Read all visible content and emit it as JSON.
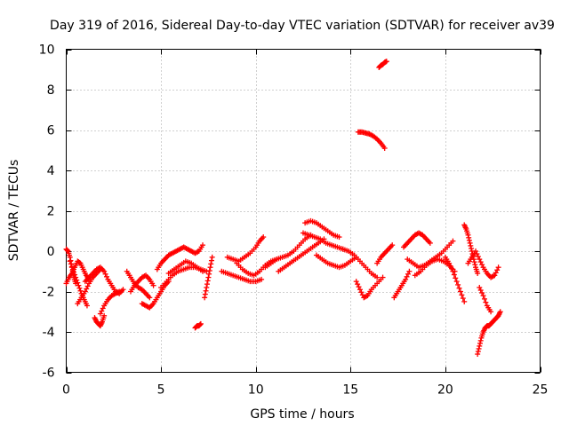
{
  "chart_data": {
    "type": "scatter",
    "title": "Day 319 of 2016, Sidereal Day-to-day VTEC variation (SDTVAR) for receiver av39",
    "xlabel": "GPS time / hours",
    "ylabel": "SDTVAR / TECUs",
    "xlim": [
      0,
      25
    ],
    "ylim": [
      -6,
      10
    ],
    "xticks": [
      0,
      5,
      10,
      15,
      20,
      25
    ],
    "yticks": [
      -6,
      -4,
      -2,
      0,
      2,
      4,
      6,
      8,
      10
    ],
    "xtick_labels": [
      "0",
      "5",
      "10",
      "15",
      "20",
      "25"
    ],
    "ytick_labels": [
      "-6",
      "-4",
      "-2",
      "0",
      "2",
      "4",
      "6",
      "8",
      "10"
    ],
    "grid": true,
    "marker": "plus",
    "color": "#ff0000",
    "series": [
      {
        "name": "s1",
        "x": [
          0.0,
          0.1,
          0.2,
          0.3,
          0.4,
          0.5
        ],
        "y": [
          0.1,
          0.0,
          -0.3,
          -0.8,
          -1.3,
          -1.6
        ]
      },
      {
        "name": "s2",
        "x": [
          0.0,
          0.15,
          0.3,
          0.45,
          0.6,
          0.75,
          0.9,
          1.05,
          1.2
        ],
        "y": [
          -1.6,
          -1.3,
          -1.1,
          -0.8,
          -0.5,
          -0.6,
          -0.9,
          -1.2,
          -1.4
        ]
      },
      {
        "name": "s3",
        "x": [
          0.2,
          0.35,
          0.5,
          0.65,
          0.8,
          0.95,
          1.1
        ],
        "y": [
          -0.5,
          -0.9,
          -1.3,
          -1.7,
          -2.1,
          -2.4,
          -2.7
        ]
      },
      {
        "name": "s4",
        "x": [
          0.6,
          0.8,
          1.0,
          1.2,
          1.4,
          1.6,
          1.8
        ],
        "y": [
          -2.6,
          -2.3,
          -2.0,
          -1.6,
          -1.3,
          -1.1,
          -0.9
        ]
      },
      {
        "name": "s5",
        "x": [
          1.5,
          1.6,
          1.7,
          1.8,
          1.9,
          2.0
        ],
        "y": [
          -3.3,
          -3.5,
          -3.6,
          -3.7,
          -3.5,
          -3.2
        ]
      },
      {
        "name": "s6",
        "x": [
          1.0,
          1.2,
          1.4,
          1.6,
          1.8,
          2.0,
          2.2,
          2.4,
          2.6,
          2.8,
          3.0
        ],
        "y": [
          -1.5,
          -1.3,
          -1.1,
          -0.9,
          -0.8,
          -1.0,
          -1.4,
          -1.7,
          -2.0,
          -2.1,
          -1.9
        ]
      },
      {
        "name": "s7",
        "x": [
          1.8,
          2.0,
          2.2,
          2.4,
          2.6,
          2.8
        ],
        "y": [
          -3.1,
          -2.7,
          -2.4,
          -2.2,
          -2.1,
          -2.0
        ]
      },
      {
        "name": "s8",
        "x": [
          3.2,
          3.4,
          3.6,
          3.8,
          4.0,
          4.2,
          4.4
        ],
        "y": [
          -1.0,
          -1.3,
          -1.6,
          -1.8,
          -1.9,
          -2.1,
          -2.3
        ]
      },
      {
        "name": "s9",
        "x": [
          3.4,
          3.6,
          3.8,
          4.0,
          4.2,
          4.4,
          4.6
        ],
        "y": [
          -2.0,
          -1.7,
          -1.5,
          -1.3,
          -1.2,
          -1.4,
          -1.7
        ]
      },
      {
        "name": "s10",
        "x": [
          4.0,
          4.2,
          4.4,
          4.6,
          4.8,
          5.0,
          5.2,
          5.4
        ],
        "y": [
          -2.6,
          -2.7,
          -2.8,
          -2.6,
          -2.3,
          -2.0,
          -1.7,
          -1.5
        ]
      },
      {
        "name": "s11",
        "x": [
          4.8,
          5.0,
          5.2,
          5.4,
          5.6,
          5.8,
          6.0,
          6.2,
          6.4,
          6.6,
          6.8,
          7.0,
          7.2
        ],
        "y": [
          -0.9,
          -0.6,
          -0.4,
          -0.2,
          -0.1,
          0.0,
          0.1,
          0.2,
          0.1,
          0.0,
          -0.1,
          0.0,
          0.3
        ]
      },
      {
        "name": "s12",
        "x": [
          5.0,
          5.3,
          5.6,
          5.9,
          6.2,
          6.5,
          6.8,
          7.1,
          7.4
        ],
        "y": [
          -1.8,
          -1.5,
          -1.2,
          -1.0,
          -0.9,
          -0.8,
          -0.8,
          -0.9,
          -1.0
        ]
      },
      {
        "name": "s13",
        "x": [
          5.4,
          5.7,
          6.0,
          6.3,
          6.6,
          6.9,
          7.2
        ],
        "y": [
          -1.1,
          -0.9,
          -0.7,
          -0.5,
          -0.6,
          -0.8,
          -1.0
        ]
      },
      {
        "name": "s14",
        "x": [
          6.8,
          6.9,
          7.0,
          7.1
        ],
        "y": [
          -3.8,
          -3.7,
          -3.7,
          -3.6
        ]
      },
      {
        "name": "s15",
        "x": [
          7.3,
          7.4,
          7.5,
          7.6,
          7.7
        ],
        "y": [
          -2.3,
          -1.8,
          -1.3,
          -0.8,
          -0.3
        ]
      },
      {
        "name": "s16",
        "x": [
          8.2,
          8.5,
          8.8,
          9.1,
          9.4,
          9.7,
          10.0,
          10.3
        ],
        "y": [
          -1.0,
          -1.1,
          -1.2,
          -1.3,
          -1.4,
          -1.5,
          -1.5,
          -1.4
        ]
      },
      {
        "name": "s17",
        "x": [
          8.5,
          8.8,
          9.1,
          9.4,
          9.7,
          10.0,
          10.2,
          10.4
        ],
        "y": [
          -0.3,
          -0.4,
          -0.5,
          -0.3,
          -0.1,
          0.2,
          0.5,
          0.7
        ]
      },
      {
        "name": "s18",
        "x": [
          9.0,
          9.3,
          9.6,
          9.9,
          10.2,
          10.5,
          10.8,
          11.1
        ],
        "y": [
          -0.6,
          -0.9,
          -1.1,
          -1.2,
          -1.0,
          -0.7,
          -0.5,
          -0.4
        ]
      },
      {
        "name": "s19",
        "x": [
          10.5,
          10.8,
          11.1,
          11.4,
          11.7,
          12.0,
          12.3,
          12.6,
          12.9
        ],
        "y": [
          -0.8,
          -0.6,
          -0.4,
          -0.3,
          -0.2,
          0.0,
          0.3,
          0.6,
          0.8
        ]
      },
      {
        "name": "s20",
        "x": [
          11.2,
          11.5,
          11.8,
          12.1,
          12.4,
          12.7,
          13.0,
          13.3,
          13.6
        ],
        "y": [
          -1.0,
          -0.8,
          -0.6,
          -0.4,
          -0.2,
          0.0,
          0.2,
          0.4,
          0.6
        ]
      },
      {
        "name": "s21",
        "x": [
          12.6,
          12.9,
          13.2,
          13.5,
          13.8,
          14.1,
          14.4
        ],
        "y": [
          1.4,
          1.5,
          1.4,
          1.2,
          1.0,
          0.8,
          0.7
        ]
      },
      {
        "name": "s22",
        "x": [
          12.5,
          12.8,
          13.1,
          13.4,
          13.7,
          14.0,
          14.3,
          14.6
        ],
        "y": [
          0.9,
          0.8,
          0.7,
          0.6,
          0.4,
          0.3,
          0.2,
          0.1
        ]
      },
      {
        "name": "s23",
        "x": [
          13.2,
          13.5,
          13.8,
          14.1,
          14.4,
          14.7,
          15.0,
          15.3
        ],
        "y": [
          -0.2,
          -0.4,
          -0.6,
          -0.7,
          -0.8,
          -0.7,
          -0.5,
          -0.3
        ]
      },
      {
        "name": "s24",
        "x": [
          14.6,
          14.9,
          15.2,
          15.5,
          15.8,
          16.1,
          16.4
        ],
        "y": [
          0.1,
          0.0,
          -0.2,
          -0.5,
          -0.8,
          -1.1,
          -1.3
        ]
      },
      {
        "name": "s25",
        "x": [
          15.3,
          15.5,
          15.7,
          15.9,
          16.1,
          16.4,
          16.7
        ],
        "y": [
          -1.5,
          -1.9,
          -2.3,
          -2.2,
          -1.9,
          -1.6,
          -1.3
        ]
      },
      {
        "name": "s26",
        "x": [
          16.4,
          16.6,
          16.8,
          17.0,
          17.2
        ],
        "y": [
          -0.6,
          -0.3,
          -0.1,
          0.1,
          0.3
        ]
      },
      {
        "name": "s27",
        "x": [
          15.4,
          15.6,
          15.8,
          16.0,
          16.2,
          16.4,
          16.6,
          16.8
        ],
        "y": [
          5.9,
          5.9,
          5.85,
          5.8,
          5.7,
          5.55,
          5.35,
          5.1
        ]
      },
      {
        "name": "s28",
        "x": [
          16.5,
          16.6,
          16.7,
          16.8,
          16.9
        ],
        "y": [
          9.1,
          9.2,
          9.25,
          9.35,
          9.4
        ]
      },
      {
        "name": "s29",
        "x": [
          17.3,
          17.5,
          17.7,
          17.9,
          18.1
        ],
        "y": [
          -2.3,
          -2.0,
          -1.7,
          -1.4,
          -1.0
        ]
      },
      {
        "name": "s30",
        "x": [
          17.8,
          18.0,
          18.2,
          18.4,
          18.6,
          18.8,
          19.0,
          19.2
        ],
        "y": [
          0.2,
          0.4,
          0.6,
          0.8,
          0.9,
          0.8,
          0.6,
          0.4
        ]
      },
      {
        "name": "s31",
        "x": [
          18.0,
          18.3,
          18.6,
          18.9,
          19.2,
          19.5,
          19.8,
          20.1,
          20.4
        ],
        "y": [
          -0.4,
          -0.6,
          -0.8,
          -0.7,
          -0.5,
          -0.3,
          -0.1,
          0.2,
          0.5
        ]
      },
      {
        "name": "s32",
        "x": [
          18.4,
          18.7,
          19.0,
          19.3,
          19.6,
          19.9,
          20.2,
          20.5
        ],
        "y": [
          -1.2,
          -1.0,
          -0.7,
          -0.5,
          -0.4,
          -0.5,
          -0.7,
          -1.0
        ]
      },
      {
        "name": "s33",
        "x": [
          20.0,
          20.2,
          20.4,
          20.6,
          20.8,
          21.0
        ],
        "y": [
          -0.3,
          -0.6,
          -1.0,
          -1.5,
          -2.0,
          -2.5
        ]
      },
      {
        "name": "s34",
        "x": [
          21.0,
          21.1,
          21.2,
          21.3,
          21.4,
          21.5,
          21.6,
          21.7
        ],
        "y": [
          1.3,
          1.1,
          0.8,
          0.4,
          0.0,
          -0.4,
          -0.8,
          -1.1
        ]
      },
      {
        "name": "s35",
        "x": [
          21.2,
          21.4,
          21.6,
          21.8,
          22.0,
          22.2,
          22.4,
          22.6,
          22.8
        ],
        "y": [
          -0.6,
          -0.3,
          0.0,
          -0.4,
          -0.8,
          -1.1,
          -1.3,
          -1.2,
          -0.8
        ]
      },
      {
        "name": "s36",
        "x": [
          21.8,
          22.0,
          22.2,
          22.4
        ],
        "y": [
          -1.8,
          -2.2,
          -2.7,
          -3.0
        ]
      },
      {
        "name": "s37",
        "x": [
          21.7,
          21.8,
          21.9,
          22.0,
          22.1,
          22.2,
          22.3,
          22.4,
          22.5,
          22.6,
          22.7,
          22.8,
          22.9
        ],
        "y": [
          -5.1,
          -4.7,
          -4.3,
          -4.0,
          -3.8,
          -3.7,
          -3.7,
          -3.6,
          -3.5,
          -3.4,
          -3.3,
          -3.2,
          -3.0
        ]
      }
    ]
  }
}
